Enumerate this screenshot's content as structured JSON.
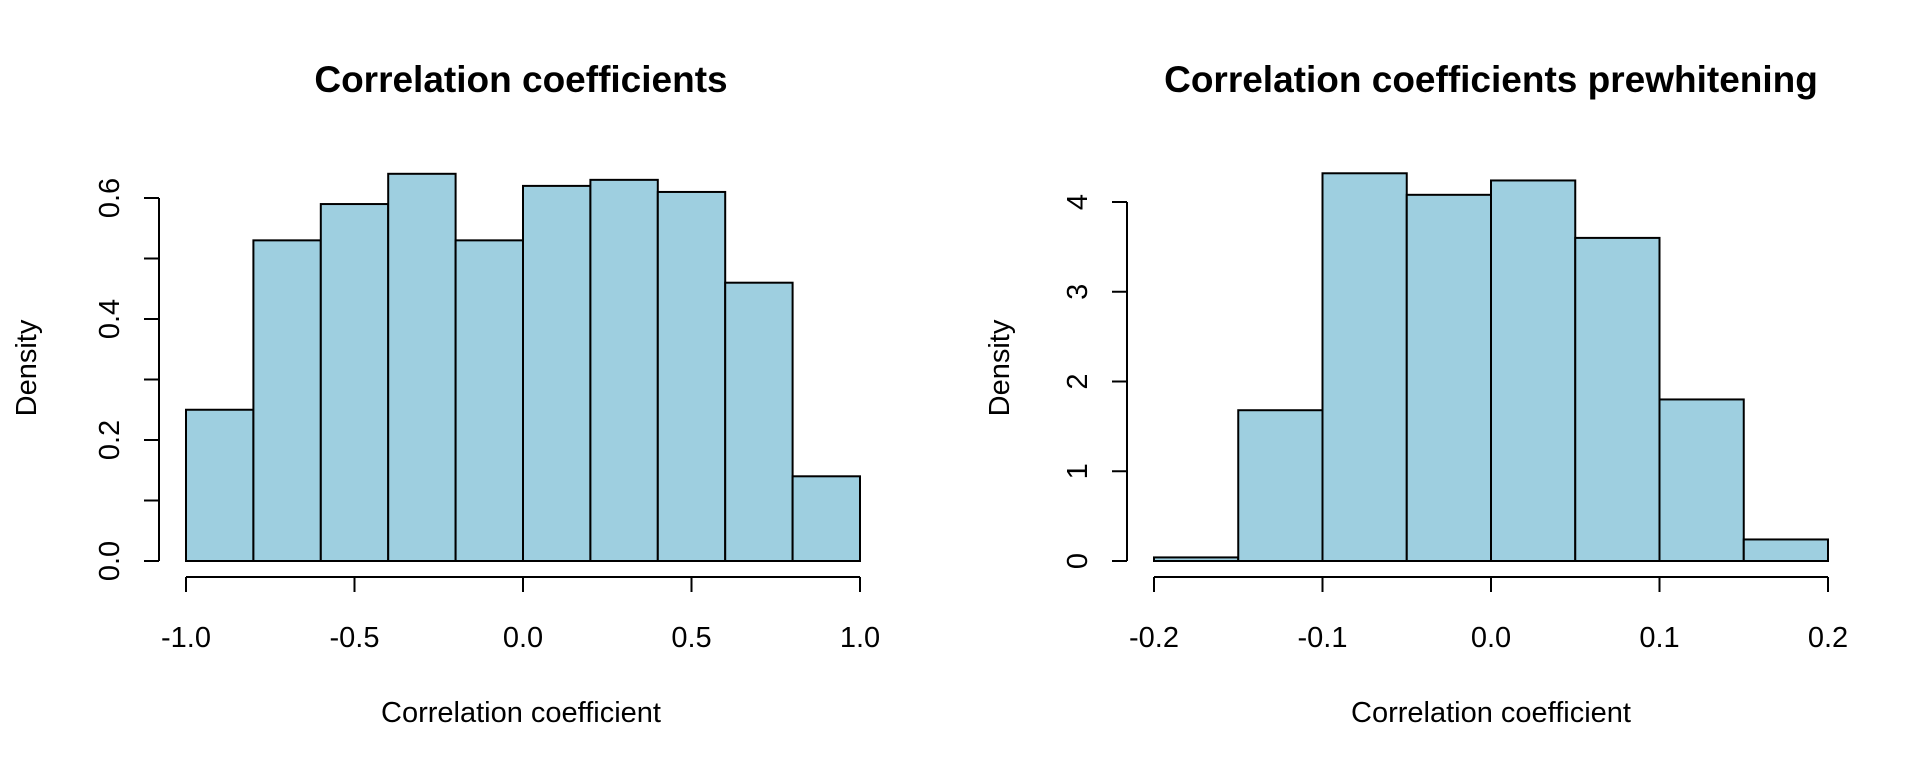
{
  "colors": {
    "bar_fill": "#9ecfe0",
    "bar_stroke": "#000000"
  },
  "chart_data": [
    {
      "type": "bar",
      "title": "Correlation coefficients",
      "xlabel": "Correlation coefficient",
      "ylabel": "Density",
      "xlim": [
        -1.0,
        1.0
      ],
      "ylim": [
        0,
        0.6
      ],
      "x_ticks": [
        "-1.0",
        "-0.5",
        "0.0",
        "0.5",
        "1.0"
      ],
      "x_tick_values": [
        -1.0,
        -0.5,
        0.0,
        0.5,
        1.0
      ],
      "y_ticks": [
        "0.0",
        "0.2",
        "0.4",
        "0.6"
      ],
      "y_tick_values": [
        0.0,
        0.2,
        0.4,
        0.6
      ],
      "y_minor_ticks": [
        0.1,
        0.3,
        0.5
      ],
      "bin_edges": [
        -1.0,
        -0.8,
        -0.6,
        -0.4,
        -0.2,
        0.0,
        0.2,
        0.4,
        0.6,
        0.8,
        1.0
      ],
      "values": [
        0.25,
        0.53,
        0.59,
        0.64,
        0.53,
        0.62,
        0.63,
        0.61,
        0.46,
        0.14
      ]
    },
    {
      "type": "bar",
      "title": "Correlation coefficients prewhitening",
      "xlabel": "Correlation coefficient",
      "ylabel": "Density",
      "xlim": [
        -0.2,
        0.2
      ],
      "ylim": [
        0,
        4
      ],
      "x_ticks": [
        "-0.2",
        "-0.1",
        "0.0",
        "0.1",
        "0.2"
      ],
      "x_tick_values": [
        -0.2,
        -0.1,
        0.0,
        0.1,
        0.2
      ],
      "y_ticks": [
        "0",
        "1",
        "2",
        "3",
        "4"
      ],
      "y_tick_values": [
        0,
        1,
        2,
        3,
        4
      ],
      "y_minor_ticks": [],
      "bin_edges": [
        -0.2,
        -0.15,
        -0.1,
        -0.05,
        0.0,
        0.05,
        0.1,
        0.15,
        0.2
      ],
      "values": [
        0.04,
        1.68,
        4.32,
        4.08,
        4.24,
        3.6,
        1.8,
        0.24
      ]
    }
  ]
}
